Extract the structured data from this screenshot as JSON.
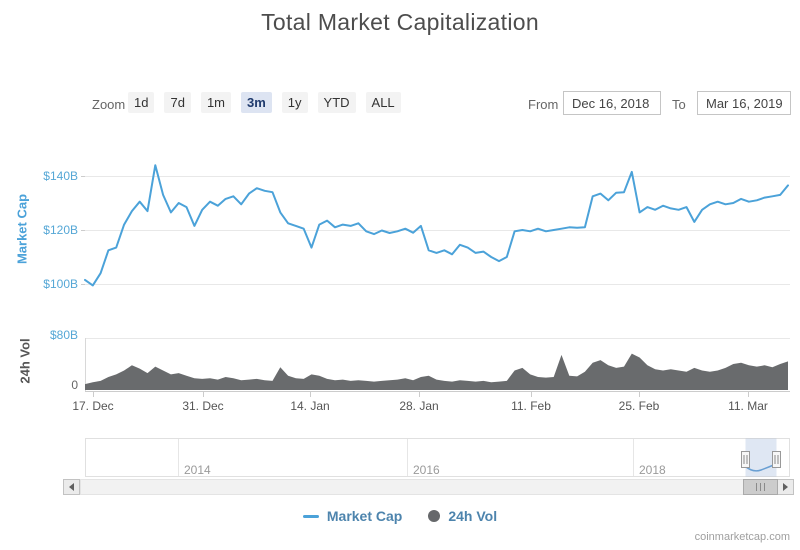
{
  "title": "Total Market Capitalization",
  "toolbar": {
    "zoom_label": "Zoom",
    "buttons": [
      "1d",
      "7d",
      "1m",
      "3m",
      "1y",
      "YTD",
      "ALL"
    ],
    "selected_button": "3m",
    "from_label": "From",
    "from_value": "Dec 16, 2018",
    "to_label": "To",
    "to_value": "Mar 16, 2019"
  },
  "chart_data": {
    "type": "line",
    "title": "Total Market Capitalization",
    "x_start": "Dec 16, 2018",
    "x_end": "Mar 16, 2019",
    "interval": "daily",
    "x_ticks": [
      "17. Dec",
      "31. Dec",
      "14. Jan",
      "28. Jan",
      "11. Feb",
      "25. Feb",
      "11. Mar"
    ],
    "mcap_axis": {
      "title": "Market Cap",
      "tick_labels": [
        "$140B",
        "$120B",
        "$100B"
      ],
      "range_billion": [
        95,
        150
      ]
    },
    "vol_axis": {
      "title": "24h Vol",
      "tick_labels": [
        "$80B",
        "0"
      ],
      "range_billion": [
        0,
        80
      ]
    },
    "grid": true,
    "legend_position": "bottom-center",
    "series": [
      {
        "name": "Market Cap",
        "type": "line",
        "unit": "USD billion",
        "color": "#4BA2D9",
        "values": [
          101.5,
          99.5,
          104,
          112.5,
          113.5,
          122,
          127,
          130.5,
          127,
          144,
          133,
          126.5,
          130,
          128.5,
          121.5,
          127.5,
          130.5,
          129,
          131.5,
          132.5,
          129.5,
          133.5,
          135.5,
          134.5,
          134,
          126.5,
          122.5,
          121.5,
          120.5,
          113.5,
          122,
          123.5,
          121,
          122,
          121.5,
          122.5,
          119.5,
          118.5,
          119.8,
          118.9,
          119.5,
          120.5,
          119,
          121.5,
          112.5,
          111.5,
          112.5,
          111,
          114.5,
          113.5,
          111.5,
          112,
          110,
          108.5,
          110,
          119.5,
          120,
          119.5,
          120.5,
          119.5,
          120,
          120.5,
          121,
          120.8,
          121,
          132.5,
          133.5,
          131,
          133.8,
          134,
          141.5,
          126.5,
          128.5,
          127.5,
          129,
          128,
          127.5,
          128.5,
          123,
          127.5,
          129.5,
          130.5,
          129.5,
          130,
          131.5,
          130.5,
          131,
          132,
          132.5,
          133,
          136.5
        ]
      },
      {
        "name": "24h Vol",
        "type": "area",
        "unit": "USD billion",
        "color": "#696B6D",
        "values": [
          9,
          12,
          14,
          20,
          24,
          30,
          38,
          33,
          26,
          36,
          30,
          24,
          26,
          22,
          18,
          17,
          18,
          16,
          20,
          18,
          15,
          16,
          17,
          15,
          14,
          35,
          22,
          18,
          17,
          24,
          22,
          17,
          15,
          16,
          14,
          15,
          14,
          13,
          14,
          15,
          16,
          18,
          15,
          20,
          22,
          16,
          14,
          13,
          15,
          14,
          13,
          14,
          12,
          13,
          14,
          30,
          34,
          24,
          20,
          19,
          20,
          54,
          22,
          21,
          28,
          42,
          46,
          38,
          34,
          36,
          56,
          50,
          38,
          32,
          30,
          32,
          30,
          28,
          34,
          30,
          28,
          30,
          34,
          40,
          42,
          38,
          36,
          38,
          35,
          40,
          44
        ]
      }
    ]
  },
  "navigator": {
    "years": [
      "2014",
      "2016",
      "2018"
    ]
  },
  "legend": {
    "items": [
      {
        "label": "Market Cap",
        "marker": "line",
        "marker_color": "#4BA2D9"
      },
      {
        "label": "24h Vol",
        "marker": "circle",
        "marker_color": "#66686B"
      }
    ]
  },
  "attribution": "coinmarketcap.com",
  "colors": {
    "accent_blue": "#4BA2D9",
    "volume_gray": "#696B6D",
    "axis_text_blue": "#55A7D6",
    "axis_text_gray": "#555555",
    "legend_text": "#4D84AD",
    "selected_button_bg": "#DDE4F2",
    "grid": "#E6E6E6"
  }
}
